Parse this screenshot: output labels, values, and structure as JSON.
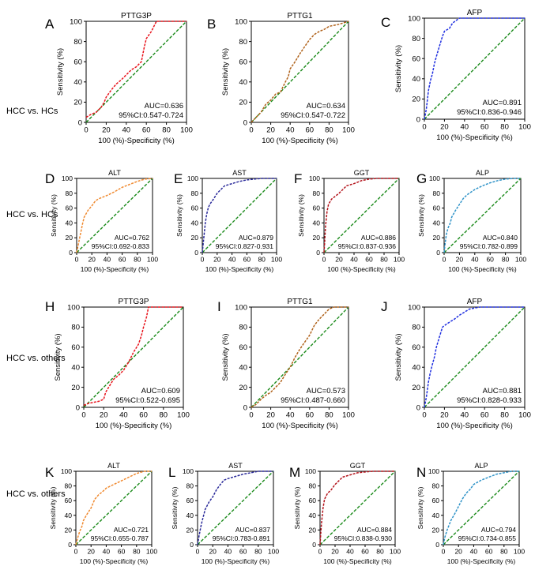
{
  "row_labels": [
    "HCC vs. HCs",
    "HCC vs. HCs",
    "HCC vs. others",
    "HCC vs. others"
  ],
  "colors": {
    "diagonal": "#1a8a1a",
    "PTTG3P": "#e8141c",
    "PTTG1": "#b0621a",
    "AFP": "#1f2fe0",
    "ALT": "#f08a30",
    "AST": "#2a2a9a",
    "GGT": "#b4141c",
    "ALP": "#2f93c8"
  },
  "chart_data": [
    {
      "type": "line",
      "panel": "A",
      "title": "PTTG3P",
      "xlabel": "100 (%)-Specificity (%)",
      "ylabel": "Sensitivity (%)",
      "xlim": [
        0,
        100
      ],
      "ylim": [
        0,
        100
      ],
      "ticks": [
        "0",
        "20",
        "40",
        "60",
        "80",
        "100"
      ],
      "auc_text": "AUC=0.636",
      "ci_text": "95%CI:0.547-0.724",
      "color_key": "PTTG3P",
      "roc": [
        [
          0,
          5
        ],
        [
          5,
          8
        ],
        [
          10,
          10
        ],
        [
          15,
          15
        ],
        [
          18,
          20
        ],
        [
          20,
          25
        ],
        [
          25,
          32
        ],
        [
          30,
          38
        ],
        [
          35,
          42
        ],
        [
          40,
          47
        ],
        [
          45,
          52
        ],
        [
          50,
          55
        ],
        [
          55,
          60
        ],
        [
          58,
          75
        ],
        [
          60,
          83
        ],
        [
          65,
          90
        ],
        [
          70,
          100
        ],
        [
          100,
          100
        ]
      ]
    },
    {
      "type": "line",
      "panel": "B",
      "title": "PTTG1",
      "xlabel": "100 (%)-Specificity (%)",
      "ylabel": "Sensitivity (%)",
      "xlim": [
        0,
        100
      ],
      "ylim": [
        0,
        100
      ],
      "ticks": [
        "0",
        "20",
        "40",
        "60",
        "80",
        "100"
      ],
      "auc_text": "AUC=0.634",
      "ci_text": "95%CI:0.547-0.722",
      "color_key": "PTTG1",
      "roc": [
        [
          0,
          0
        ],
        [
          5,
          5
        ],
        [
          10,
          10
        ],
        [
          15,
          18
        ],
        [
          20,
          22
        ],
        [
          25,
          28
        ],
        [
          30,
          30
        ],
        [
          35,
          40
        ],
        [
          38,
          45
        ],
        [
          40,
          53
        ],
        [
          45,
          60
        ],
        [
          50,
          68
        ],
        [
          55,
          75
        ],
        [
          60,
          82
        ],
        [
          65,
          87
        ],
        [
          70,
          90
        ],
        [
          75,
          92
        ],
        [
          80,
          95
        ],
        [
          90,
          97
        ],
        [
          100,
          100
        ]
      ]
    },
    {
      "type": "line",
      "panel": "C",
      "title": "AFP",
      "xlabel": "100 (%)-Specificity (%)",
      "ylabel": "Sensitivity (%)",
      "xlim": [
        0,
        100
      ],
      "ylim": [
        0,
        100
      ],
      "ticks": [
        "0",
        "20",
        "40",
        "60",
        "80",
        "100"
      ],
      "auc_text": "AUC=0.891",
      "ci_text": "95%CI:0.836-0.946",
      "color_key": "AFP",
      "roc": [
        [
          0,
          0
        ],
        [
          2,
          10
        ],
        [
          4,
          28
        ],
        [
          6,
          38
        ],
        [
          8,
          45
        ],
        [
          10,
          55
        ],
        [
          12,
          62
        ],
        [
          15,
          72
        ],
        [
          18,
          82
        ],
        [
          20,
          87
        ],
        [
          25,
          90
        ],
        [
          28,
          95
        ],
        [
          32,
          98
        ],
        [
          35,
          100
        ],
        [
          100,
          100
        ]
      ]
    },
    {
      "type": "line",
      "panel": "D",
      "title": "ALT",
      "xlabel": "100 (%)-Specificity (%)",
      "ylabel": "Sensitivity (%)",
      "xlim": [
        0,
        100
      ],
      "ylim": [
        0,
        100
      ],
      "ticks": [
        "0",
        "20",
        "40",
        "60",
        "80",
        "100"
      ],
      "auc_text": "AUC=0.762",
      "ci_text": "95%CI:0.692-0.833",
      "color_key": "ALT",
      "roc": [
        [
          0,
          0
        ],
        [
          2,
          10
        ],
        [
          5,
          25
        ],
        [
          8,
          40
        ],
        [
          10,
          48
        ],
        [
          15,
          57
        ],
        [
          20,
          63
        ],
        [
          25,
          70
        ],
        [
          30,
          73
        ],
        [
          40,
          77
        ],
        [
          50,
          82
        ],
        [
          60,
          88
        ],
        [
          70,
          92
        ],
        [
          80,
          96
        ],
        [
          90,
          99
        ],
        [
          100,
          100
        ]
      ]
    },
    {
      "type": "line",
      "panel": "E",
      "title": "AST",
      "xlabel": "100 (%)-Specificity (%)",
      "ylabel": "Sensitivity (%)",
      "xlim": [
        0,
        100
      ],
      "ylim": [
        0,
        100
      ],
      "ticks": [
        "0",
        "20",
        "40",
        "60",
        "80",
        "100"
      ],
      "auc_text": "AUC=0.879",
      "ci_text": "95%CI:0.827-0.931",
      "color_key": "AST",
      "roc": [
        [
          0,
          0
        ],
        [
          2,
          20
        ],
        [
          4,
          40
        ],
        [
          6,
          52
        ],
        [
          8,
          60
        ],
        [
          10,
          65
        ],
        [
          15,
          72
        ],
        [
          20,
          80
        ],
        [
          25,
          85
        ],
        [
          30,
          90
        ],
        [
          40,
          93
        ],
        [
          50,
          96
        ],
        [
          60,
          98
        ],
        [
          70,
          99
        ],
        [
          80,
          100
        ],
        [
          100,
          100
        ]
      ]
    },
    {
      "type": "line",
      "panel": "F",
      "title": "GGT",
      "xlabel": "100 (%)-Specificity (%)",
      "ylabel": "Sensitivity (%)",
      "xlim": [
        0,
        100
      ],
      "ylim": [
        0,
        100
      ],
      "ticks": [
        "0",
        "20",
        "40",
        "60",
        "80",
        "100"
      ],
      "auc_text": "AUC=0.886",
      "ci_text": "95%CI:0.837-0.936",
      "color_key": "GGT",
      "roc": [
        [
          0,
          0
        ],
        [
          1,
          15
        ],
        [
          2,
          35
        ],
        [
          4,
          55
        ],
        [
          6,
          65
        ],
        [
          10,
          72
        ],
        [
          15,
          76
        ],
        [
          20,
          80
        ],
        [
          25,
          85
        ],
        [
          30,
          90
        ],
        [
          40,
          93
        ],
        [
          50,
          97
        ],
        [
          60,
          99
        ],
        [
          70,
          100
        ],
        [
          100,
          100
        ]
      ]
    },
    {
      "type": "line",
      "panel": "G",
      "title": "ALP",
      "xlabel": "100 (%)-Specificity (%)",
      "ylabel": "Sensitivity (%)",
      "xlim": [
        0,
        100
      ],
      "ylim": [
        0,
        100
      ],
      "ticks": [
        "0",
        "20",
        "40",
        "60",
        "80",
        "100"
      ],
      "auc_text": "AUC=0.840",
      "ci_text": "95%CI:0.782-0.899",
      "color_key": "ALP",
      "roc": [
        [
          0,
          0
        ],
        [
          1,
          10
        ],
        [
          3,
          25
        ],
        [
          5,
          33
        ],
        [
          8,
          40
        ],
        [
          10,
          48
        ],
        [
          15,
          57
        ],
        [
          20,
          65
        ],
        [
          25,
          73
        ],
        [
          30,
          78
        ],
        [
          40,
          85
        ],
        [
          50,
          90
        ],
        [
          60,
          94
        ],
        [
          70,
          97
        ],
        [
          80,
          99
        ],
        [
          90,
          100
        ],
        [
          100,
          100
        ]
      ]
    },
    {
      "type": "line",
      "panel": "H",
      "title": "PTTG3P",
      "xlabel": "100 (%)-Specificity (%)",
      "ylabel": "Sensitivity (%)",
      "xlim": [
        0,
        100
      ],
      "ylim": [
        0,
        100
      ],
      "ticks": [
        "0",
        "20",
        "40",
        "60",
        "80",
        "100"
      ],
      "auc_text": "AUC=0.609",
      "ci_text": "95%CI:0.522-0.695",
      "color_key": "PTTG3P",
      "roc": [
        [
          0,
          2
        ],
        [
          5,
          4
        ],
        [
          10,
          5
        ],
        [
          15,
          6
        ],
        [
          20,
          8
        ],
        [
          22,
          15
        ],
        [
          25,
          20
        ],
        [
          30,
          28
        ],
        [
          35,
          32
        ],
        [
          40,
          37
        ],
        [
          45,
          45
        ],
        [
          50,
          55
        ],
        [
          55,
          63
        ],
        [
          58,
          72
        ],
        [
          60,
          80
        ],
        [
          63,
          90
        ],
        [
          65,
          100
        ],
        [
          100,
          100
        ]
      ]
    },
    {
      "type": "line",
      "panel": "I",
      "title": "PTTG1",
      "xlabel": "100 (%)-Specificity (%)",
      "ylabel": "Sensitivity (%)",
      "xlim": [
        0,
        100
      ],
      "ylim": [
        0,
        100
      ],
      "ticks": [
        "0",
        "20",
        "40",
        "60",
        "80",
        "100"
      ],
      "auc_text": "AUC=0.573",
      "ci_text": "95%CI:0.487-0.660",
      "color_key": "PTTG1",
      "roc": [
        [
          0,
          0
        ],
        [
          5,
          3
        ],
        [
          10,
          8
        ],
        [
          15,
          12
        ],
        [
          20,
          15
        ],
        [
          25,
          20
        ],
        [
          30,
          25
        ],
        [
          35,
          33
        ],
        [
          40,
          40
        ],
        [
          45,
          50
        ],
        [
          50,
          58
        ],
        [
          55,
          65
        ],
        [
          60,
          72
        ],
        [
          65,
          82
        ],
        [
          70,
          88
        ],
        [
          75,
          93
        ],
        [
          80,
          98
        ],
        [
          85,
          100
        ],
        [
          100,
          100
        ]
      ]
    },
    {
      "type": "line",
      "panel": "J",
      "title": "AFP",
      "xlabel": "100 (%)-Specificity (%)",
      "ylabel": "Sensitivity (%)",
      "xlim": [
        0,
        100
      ],
      "ylim": [
        0,
        100
      ],
      "ticks": [
        "0",
        "20",
        "40",
        "60",
        "80",
        "100"
      ],
      "auc_text": "AUC=0.881",
      "ci_text": "95%CI:0.828-0.933",
      "color_key": "AFP",
      "roc": [
        [
          0,
          0
        ],
        [
          2,
          10
        ],
        [
          4,
          25
        ],
        [
          6,
          35
        ],
        [
          8,
          43
        ],
        [
          10,
          50
        ],
        [
          12,
          60
        ],
        [
          15,
          70
        ],
        [
          18,
          80
        ],
        [
          22,
          83
        ],
        [
          25,
          85
        ],
        [
          30,
          88
        ],
        [
          35,
          92
        ],
        [
          40,
          95
        ],
        [
          45,
          98
        ],
        [
          55,
          100
        ],
        [
          100,
          100
        ]
      ]
    },
    {
      "type": "line",
      "panel": "K",
      "title": "ALT",
      "xlabel": "100 (%)-Specificity (%)",
      "ylabel": "Sensitivity (%)",
      "xlim": [
        0,
        100
      ],
      "ylim": [
        0,
        100
      ],
      "ticks": [
        "0",
        "20",
        "40",
        "60",
        "80",
        "100"
      ],
      "auc_text": "AUC=0.721",
      "ci_text": "95%CI:0.655-0.787",
      "color_key": "ALT",
      "roc": [
        [
          0,
          0
        ],
        [
          2,
          8
        ],
        [
          5,
          18
        ],
        [
          8,
          25
        ],
        [
          10,
          33
        ],
        [
          15,
          42
        ],
        [
          20,
          50
        ],
        [
          25,
          62
        ],
        [
          30,
          68
        ],
        [
          35,
          72
        ],
        [
          40,
          77
        ],
        [
          50,
          82
        ],
        [
          60,
          87
        ],
        [
          70,
          92
        ],
        [
          80,
          97
        ],
        [
          90,
          100
        ],
        [
          100,
          100
        ]
      ]
    },
    {
      "type": "line",
      "panel": "L",
      "title": "AST",
      "xlabel": "100 (%)-Specificity (%)",
      "ylabel": "Sensitivity (%)",
      "xlim": [
        0,
        100
      ],
      "ylim": [
        0,
        100
      ],
      "ticks": [
        "0",
        "20",
        "40",
        "60",
        "80",
        "100"
      ],
      "auc_text": "AUC=0.837",
      "ci_text": "95%CI:0.783-0.891",
      "color_key": "AST",
      "roc": [
        [
          0,
          0
        ],
        [
          2,
          12
        ],
        [
          5,
          28
        ],
        [
          8,
          40
        ],
        [
          10,
          48
        ],
        [
          15,
          58
        ],
        [
          20,
          65
        ],
        [
          25,
          75
        ],
        [
          30,
          82
        ],
        [
          35,
          88
        ],
        [
          40,
          90
        ],
        [
          50,
          93
        ],
        [
          60,
          96
        ],
        [
          70,
          98
        ],
        [
          80,
          100
        ],
        [
          100,
          100
        ]
      ]
    },
    {
      "type": "line",
      "panel": "M",
      "title": "GGT",
      "xlabel": "100 (%)-Specificity (%)",
      "ylabel": "Sensitivity (%)",
      "xlim": [
        0,
        100
      ],
      "ylim": [
        0,
        100
      ],
      "ticks": [
        "0",
        "20",
        "40",
        "60",
        "80",
        "100"
      ],
      "auc_text": "AUC=0.884",
      "ci_text": "95%CI:0.838-0.930",
      "color_key": "GGT",
      "roc": [
        [
          0,
          0
        ],
        [
          1,
          15
        ],
        [
          2,
          30
        ],
        [
          4,
          50
        ],
        [
          6,
          62
        ],
        [
          10,
          70
        ],
        [
          15,
          75
        ],
        [
          20,
          82
        ],
        [
          25,
          87
        ],
        [
          30,
          92
        ],
        [
          40,
          95
        ],
        [
          50,
          98
        ],
        [
          60,
          99
        ],
        [
          70,
          100
        ],
        [
          100,
          100
        ]
      ]
    },
    {
      "type": "line",
      "panel": "N",
      "title": "ALP",
      "xlabel": "100 (%)-Specificity (%)",
      "ylabel": "Sensitivity (%)",
      "xlim": [
        0,
        100
      ],
      "ylim": [
        0,
        100
      ],
      "ticks": [
        "0",
        "20",
        "40",
        "60",
        "80",
        "100"
      ],
      "auc_text": "AUC=0.794",
      "ci_text": "95%CI:0.734-0.855",
      "color_key": "ALP",
      "roc": [
        [
          0,
          0
        ],
        [
          2,
          10
        ],
        [
          5,
          20
        ],
        [
          8,
          28
        ],
        [
          10,
          33
        ],
        [
          15,
          42
        ],
        [
          20,
          52
        ],
        [
          25,
          62
        ],
        [
          30,
          70
        ],
        [
          35,
          75
        ],
        [
          40,
          82
        ],
        [
          50,
          88
        ],
        [
          60,
          92
        ],
        [
          70,
          96
        ],
        [
          80,
          98
        ],
        [
          90,
          100
        ],
        [
          100,
          100
        ]
      ]
    }
  ]
}
